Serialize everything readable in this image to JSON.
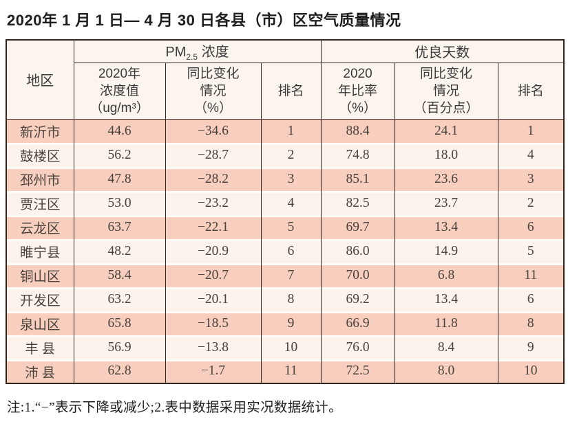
{
  "page": {
    "title": "2020年 1 月 1 日— 4 月 30 日各县（市）区空气质量情况",
    "note": "注:1.“−”表示下降或减少;2.表中数据采用实况数据统计。"
  },
  "table": {
    "header": {
      "region": "地区",
      "group_pm_prefix": "PM",
      "group_pm_sub": "2.5",
      "group_pm_suffix": " 浓度",
      "group_good": "优良天数",
      "sub": [
        "2020年\n浓度值\n（ug/m³）",
        "同比变化\n情况\n（%）",
        "排名",
        "2020\n年比率\n（%）",
        "同比变化\n情况\n（百分点）",
        "排名"
      ]
    },
    "rows": [
      [
        "新沂市",
        "44.6",
        "−34.6",
        "1",
        "88.4",
        "24.1",
        "1"
      ],
      [
        "鼓楼区",
        "56.2",
        "−28.7",
        "2",
        "74.8",
        "18.0",
        "4"
      ],
      [
        "邳州市",
        "47.8",
        "−28.2",
        "3",
        "85.1",
        "23.6",
        "3"
      ],
      [
        "贾汪区",
        "53.0",
        "−23.2",
        "4",
        "82.5",
        "23.7",
        "2"
      ],
      [
        "云龙区",
        "63.7",
        "−22.1",
        "5",
        "69.7",
        "13.4",
        "6"
      ],
      [
        "睢宁县",
        "48.2",
        "−20.9",
        "6",
        "86.0",
        "14.9",
        "5"
      ],
      [
        "铜山区",
        "58.4",
        "−20.7",
        "7",
        "70.0",
        "6.8",
        "11"
      ],
      [
        "开发区",
        "63.2",
        "−20.1",
        "8",
        "69.2",
        "13.4",
        "6"
      ],
      [
        "泉山区",
        "65.8",
        "−18.5",
        "9",
        "66.9",
        "11.8",
        "8"
      ],
      [
        "丰 县",
        "56.9",
        "−13.8",
        "10",
        "76.0",
        "8.4",
        "9"
      ],
      [
        "沛 县",
        "62.8",
        "−1.7",
        "11",
        "72.5",
        "8.0",
        "10"
      ]
    ]
  },
  "chart_data": {
    "type": "table",
    "title": "2020年1月1日—4月30日各县（市）区空气质量情况",
    "columns": [
      "地区",
      "PM2.5浓度 2020年浓度值(ug/m³)",
      "PM2.5浓度 同比变化情况(%)",
      "PM2.5浓度 排名",
      "优良天数 2020年比率(%)",
      "优良天数 同比变化情况(百分点)",
      "优良天数 排名"
    ],
    "rows": [
      [
        "新沂市",
        44.6,
        -34.6,
        1,
        88.4,
        24.1,
        1
      ],
      [
        "鼓楼区",
        56.2,
        -28.7,
        2,
        74.8,
        18.0,
        4
      ],
      [
        "邳州市",
        47.8,
        -28.2,
        3,
        85.1,
        23.6,
        3
      ],
      [
        "贾汪区",
        53.0,
        -23.2,
        4,
        82.5,
        23.7,
        2
      ],
      [
        "云龙区",
        63.7,
        -22.1,
        5,
        69.7,
        13.4,
        6
      ],
      [
        "睢宁县",
        48.2,
        -20.9,
        6,
        86.0,
        14.9,
        5
      ],
      [
        "铜山区",
        58.4,
        -20.7,
        7,
        70.0,
        6.8,
        11
      ],
      [
        "开发区",
        63.2,
        -20.1,
        8,
        69.2,
        13.4,
        6
      ],
      [
        "泉山区",
        65.8,
        -18.5,
        9,
        66.9,
        11.8,
        8
      ],
      [
        "丰县",
        56.9,
        -13.8,
        10,
        76.0,
        8.4,
        9
      ],
      [
        "沛县",
        62.8,
        -1.7,
        11,
        72.5,
        8.0,
        10
      ]
    ]
  },
  "colors": {
    "row_odd": "#f8cfbe",
    "row_even": "#fdf3ed",
    "header_bg": "#fcf5ee",
    "border": "#33251c"
  }
}
